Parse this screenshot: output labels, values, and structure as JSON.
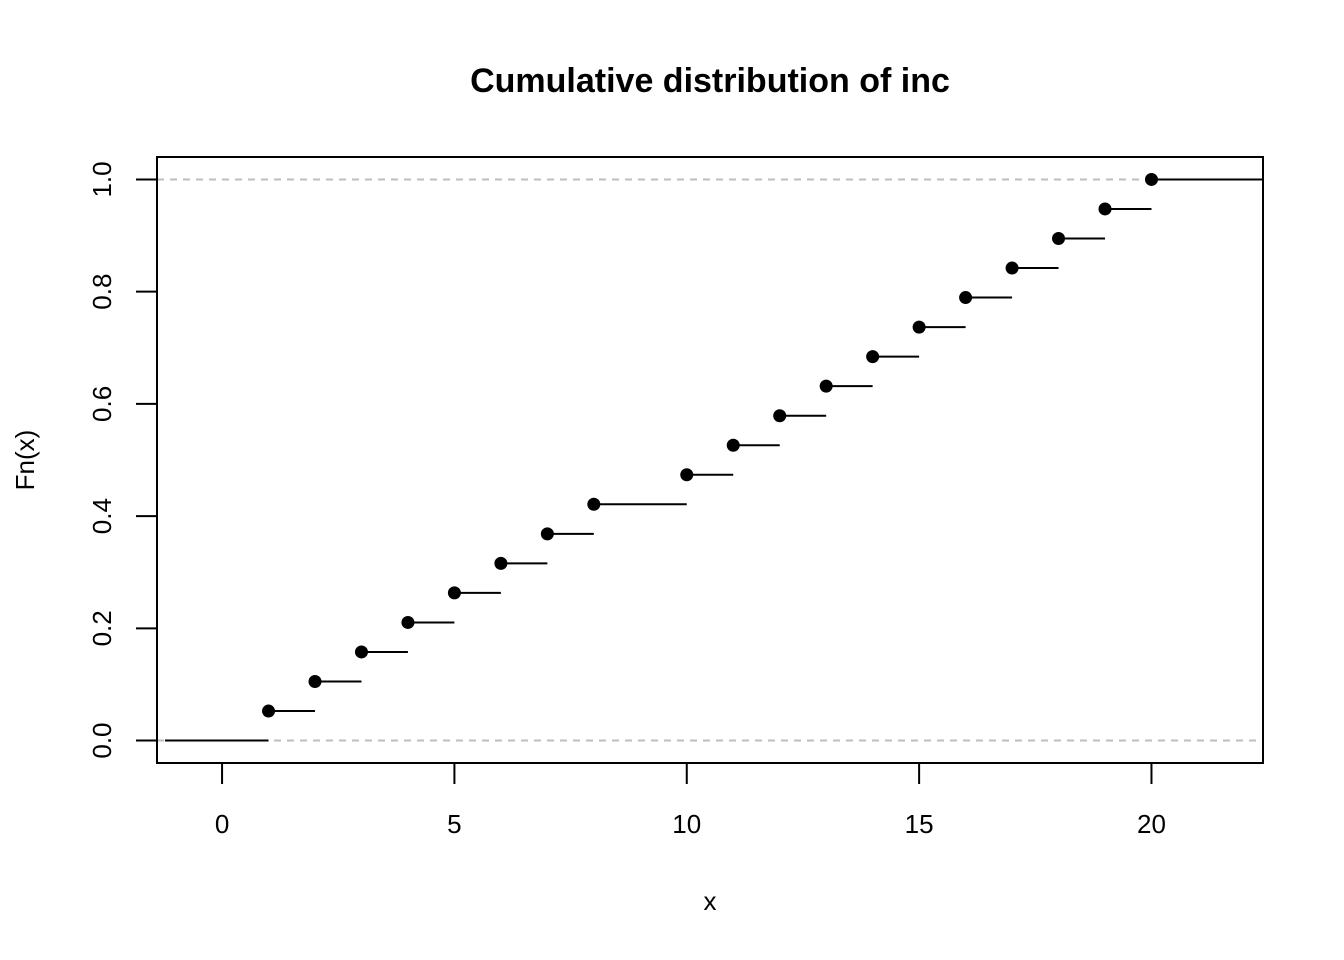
{
  "chart_data": {
    "type": "step",
    "title": "Cumulative distribution of inc",
    "xlabel": "x",
    "ylabel": "Fn(x)",
    "xlim": [
      -1.4,
      22.4
    ],
    "ylim": [
      -0.04,
      1.04
    ],
    "x_ticks": [
      0,
      5,
      10,
      15,
      20
    ],
    "x_tick_labels": [
      "0",
      "5",
      "10",
      "15",
      "20"
    ],
    "y_ticks": [
      0.0,
      0.2,
      0.4,
      0.6,
      0.8,
      1.0
    ],
    "y_tick_labels": [
      "0.0",
      "0.2",
      "0.4",
      "0.6",
      "0.8",
      "1.0"
    ],
    "reference_lines": [
      0,
      1
    ],
    "points": [
      {
        "x": 1,
        "y": 0.0526
      },
      {
        "x": 2,
        "y": 0.1053
      },
      {
        "x": 3,
        "y": 0.1579
      },
      {
        "x": 4,
        "y": 0.2105
      },
      {
        "x": 5,
        "y": 0.2632
      },
      {
        "x": 6,
        "y": 0.3158
      },
      {
        "x": 7,
        "y": 0.3684
      },
      {
        "x": 8,
        "y": 0.4211
      },
      {
        "x": 10,
        "y": 0.4737
      },
      {
        "x": 11,
        "y": 0.5263
      },
      {
        "x": 12,
        "y": 0.5789
      },
      {
        "x": 13,
        "y": 0.6316
      },
      {
        "x": 14,
        "y": 0.6842
      },
      {
        "x": 15,
        "y": 0.7368
      },
      {
        "x": 16,
        "y": 0.7895
      },
      {
        "x": 17,
        "y": 0.8421
      },
      {
        "x": 18,
        "y": 0.8947
      },
      {
        "x": 19,
        "y": 0.9474
      },
      {
        "x": 20,
        "y": 1.0
      }
    ],
    "grid": false,
    "colors": {
      "marks": "#000000",
      "reference": "#bebebe"
    }
  }
}
